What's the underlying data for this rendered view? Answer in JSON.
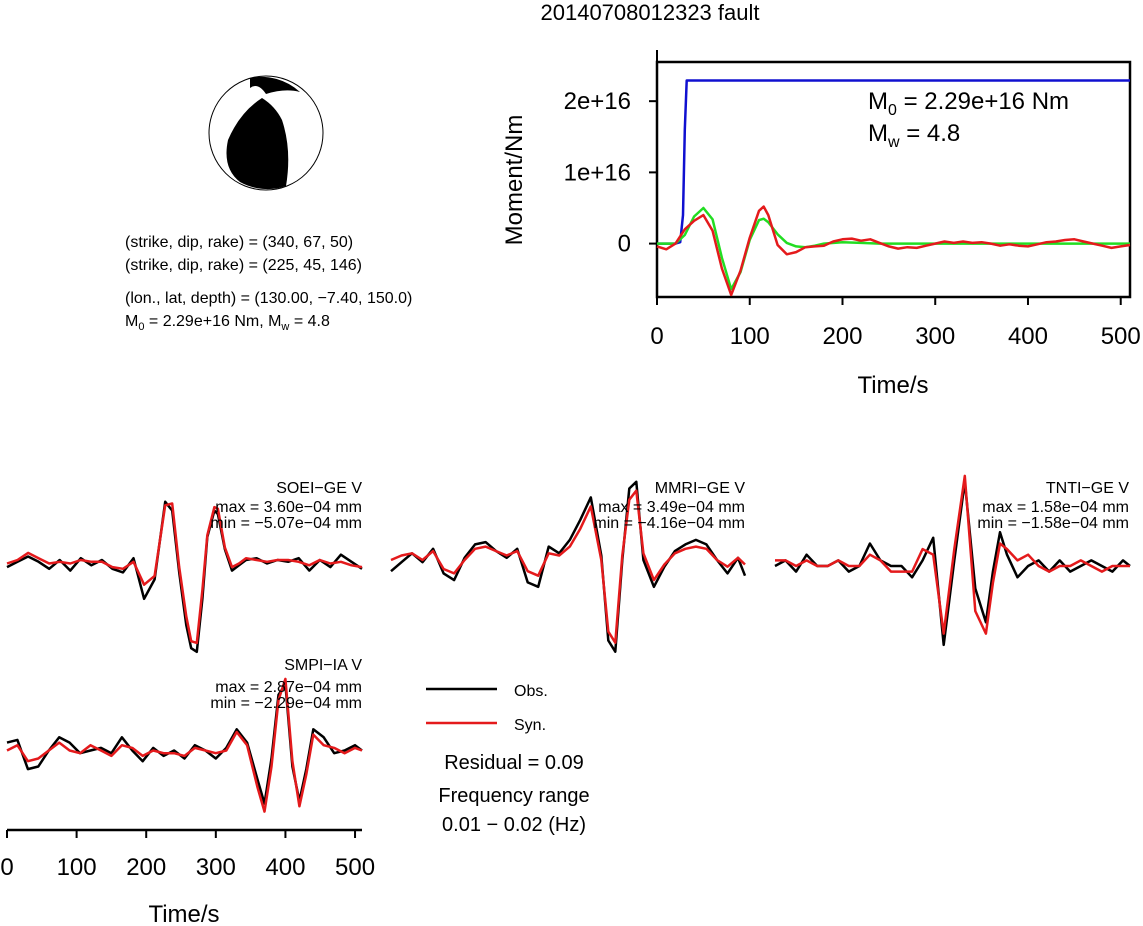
{
  "title": "20140708012323 fault",
  "mechanism": {
    "planes": [
      "(strike, dip, rake) = (340, 67, 50)",
      "(strike, dip, rake) = (225, 45, 146)"
    ],
    "location": "(lon., lat, depth) = (130.00, −7.40, 150.0)",
    "moment_line": {
      "m0_sym": "M",
      "m0_sub": "0",
      "m0_val": " = 2.29e+16 Nm, ",
      "mw_sym": "M",
      "mw_sub": "w",
      "mw_val": " = 4.8"
    }
  },
  "legend": {
    "obs_label": "Obs.",
    "syn_label": "Syn.",
    "residual": "Residual = 0.09",
    "freq_title": "Frequency range",
    "freq_value": "0.01 − 0.02 (Hz)"
  },
  "colors": {
    "observed": "#000000",
    "synthetic": "#e41a1c",
    "cumulative_moment": "#1010d0",
    "moment_rate": "#22dd22"
  },
  "chart_data": [
    {
      "type": "line",
      "title": "",
      "xlabel": "Time/s",
      "ylabel": "Moment/Nm",
      "xlim": [
        0,
        510
      ],
      "ylim": [
        -7500000000000000.0,
        2.55e+16
      ],
      "x_ticks": [
        0,
        100,
        200,
        300,
        400,
        500
      ],
      "x_tick_labels": [
        "0",
        "100",
        "200",
        "300",
        "400",
        "500"
      ],
      "y_ticks": [
        0,
        1e+16,
        2e+16
      ],
      "y_tick_labels": [
        "0",
        "1e+16",
        "2e+16"
      ],
      "annotation": {
        "m0_sym": "M",
        "m0_sub": "0",
        "m0_val": " = 2.29e+16 Nm",
        "mw_sym": "M",
        "mw_sub": "w",
        "mw_val": " = 4.8"
      },
      "series": [
        {
          "name": "",
          "color": "#1010d0",
          "x": [
            0,
            20,
            25,
            28,
            30,
            32,
            35,
            510
          ],
          "y": [
            0,
            0,
            200000000000000.0,
            4000000000000000.0,
            1.6e+16,
            2.29e+16,
            2.29e+16,
            2.29e+16
          ]
        },
        {
          "name": "",
          "color": "#22dd22",
          "x": [
            0,
            20,
            30,
            40,
            50,
            60,
            70,
            80,
            90,
            100,
            110,
            115,
            120,
            130,
            140,
            150,
            160,
            170,
            180,
            200,
            220,
            240,
            260,
            510
          ],
          "y": [
            0,
            0,
            1200000000000000.0,
            3800000000000000.0,
            5000000000000000.0,
            3400000000000000.0,
            -2000000000000000.0,
            -6400000000000000.0,
            -4000000000000000.0,
            500000000000000.0,
            3300000000000000.0,
            3500000000000000.0,
            3000000000000000.0,
            1300000000000000.0,
            100000000000000.0,
            -400000000000000.0,
            -500000000000000.0,
            -300000000000000.0,
            0,
            200000000000000.0,
            100000000000000.0,
            0,
            0,
            0
          ]
        },
        {
          "name": "",
          "color": "#e41a1c",
          "x": [
            0,
            10,
            20,
            30,
            40,
            50,
            60,
            70,
            80,
            90,
            100,
            110,
            115,
            120,
            130,
            140,
            150,
            160,
            170,
            180,
            190,
            200,
            210,
            220,
            230,
            240,
            250,
            260,
            270,
            280,
            290,
            300,
            310,
            320,
            330,
            340,
            350,
            360,
            370,
            380,
            390,
            400,
            410,
            420,
            430,
            440,
            450,
            460,
            470,
            480,
            490,
            500,
            510
          ],
          "y": [
            -400000000000000.0,
            -800000000000000.0,
            0,
            2000000000000000.0,
            3200000000000000.0,
            4000000000000000.0,
            1800000000000000.0,
            -3500000000000000.0,
            -7200000000000000.0,
            -3800000000000000.0,
            800000000000000.0,
            4600000000000000.0,
            5200000000000000.0,
            4000000000000000.0,
            -200000000000000.0,
            -1500000000000000.0,
            -1200000000000000.0,
            -500000000000000.0,
            -400000000000000.0,
            -300000000000000.0,
            300000000000000.0,
            600000000000000.0,
            700000000000000.0,
            400000000000000.0,
            600000000000000.0,
            100000000000000.0,
            -400000000000000.0,
            -700000000000000.0,
            -500000000000000.0,
            -600000000000000.0,
            -300000000000000.0,
            0,
            300000000000000.0,
            100000000000000.0,
            300000000000000.0,
            100000000000000.0,
            200000000000000.0,
            0,
            -300000000000000.0,
            -100000000000000.0,
            -300000000000000.0,
            -400000000000000.0,
            -100000000000000.0,
            200000000000000.0,
            300000000000000.0,
            500000000000000.0,
            600000000000000.0,
            300000000000000.0,
            0,
            -300000000000000.0,
            -600000000000000.0,
            -400000000000000.0,
            -200000000000000.0
          ]
        }
      ]
    },
    {
      "type": "line",
      "title": "SOEI−GE V",
      "annotations": [
        "max = 3.60e−04 mm",
        "min = −5.07e−04 mm"
      ],
      "ylim": [
        -5.07,
        3.6
      ],
      "x": [
        0,
        15,
        30,
        45,
        60,
        75,
        90,
        105,
        120,
        135,
        150,
        165,
        180,
        195,
        210,
        225,
        235,
        245,
        255,
        262,
        270,
        278,
        285,
        295,
        300,
        310,
        320,
        330,
        340,
        355,
        370,
        385,
        400,
        415,
        430,
        445,
        460,
        475,
        490,
        505
      ],
      "series": [
        {
          "name": "Obs.",
          "color": "#000000",
          "values": [
            -0.2,
            0.1,
            0.4,
            0.1,
            -0.3,
            0.2,
            -0.4,
            0.3,
            -0.1,
            0.2,
            -0.3,
            -0.5,
            0.3,
            -2.0,
            -0.9,
            3.5,
            3.0,
            -0.5,
            -3.5,
            -4.8,
            -5.0,
            -2.0,
            1.5,
            3.0,
            2.8,
            0.8,
            -0.4,
            -0.1,
            0.2,
            0.3,
            0.0,
            0.2,
            0.1,
            0.3,
            -0.4,
            0.2,
            -0.2,
            0.5,
            0.1,
            -0.3
          ]
        },
        {
          "name": "Syn.",
          "color": "#e41a1c",
          "values": [
            0.0,
            0.2,
            0.6,
            0.3,
            0.0,
            0.1,
            0.0,
            0.2,
            0.1,
            0.1,
            -0.2,
            -0.3,
            0.1,
            -1.2,
            -0.7,
            3.3,
            3.4,
            -0.2,
            -3.0,
            -4.4,
            -4.5,
            -1.5,
            1.6,
            3.2,
            3.1,
            0.9,
            -0.2,
            0.0,
            0.3,
            0.2,
            0.1,
            0.2,
            0.2,
            0.1,
            -0.1,
            0.2,
            0.0,
            0.1,
            -0.1,
            -0.2
          ]
        }
      ]
    },
    {
      "type": "line",
      "title": "MMRI−GE V",
      "annotations": [
        "max = 3.49e−04 mm",
        "min = −4.16e−04 mm"
      ],
      "ylim": [
        -4.16,
        3.49
      ],
      "x": [
        0,
        15,
        30,
        45,
        60,
        75,
        90,
        105,
        120,
        135,
        150,
        165,
        180,
        195,
        210,
        225,
        240,
        255,
        270,
        285,
        300,
        310,
        320,
        330,
        340,
        350,
        360,
        375,
        390,
        405,
        420,
        435,
        450,
        465,
        480,
        495,
        505
      ],
      "series": [
        {
          "name": "Obs.",
          "color": "#000000",
          "values": [
            -0.5,
            -0.1,
            0.3,
            -0.1,
            0.5,
            -0.6,
            -0.9,
            0.1,
            0.7,
            0.8,
            0.4,
            0.1,
            0.5,
            -1.0,
            -1.2,
            0.6,
            0.3,
            0.9,
            1.8,
            2.8,
            0.2,
            -3.6,
            -4.1,
            0.0,
            3.2,
            3.5,
            0.0,
            -1.2,
            -0.3,
            0.4,
            0.7,
            0.9,
            0.7,
            0.0,
            -0.6,
            0.1,
            -0.7
          ]
        },
        {
          "name": "Syn.",
          "color": "#e41a1c",
          "values": [
            0.0,
            0.2,
            0.3,
            0.0,
            0.4,
            -0.4,
            -0.6,
            0.0,
            0.5,
            0.6,
            0.4,
            0.2,
            0.4,
            -0.5,
            -0.7,
            0.3,
            0.2,
            0.6,
            1.4,
            2.4,
            0.0,
            -3.2,
            -3.7,
            0.2,
            2.7,
            3.1,
            0.3,
            -0.9,
            -0.2,
            0.3,
            0.5,
            0.6,
            0.5,
            0.0,
            -0.3,
            0.1,
            -0.2
          ]
        }
      ]
    },
    {
      "type": "line",
      "title": "TNTI−GE V",
      "annotations": [
        "max = 1.58e−04 mm",
        "min = −1.58e−04 mm"
      ],
      "ylim": [
        -1.58,
        1.58
      ],
      "x": [
        0,
        15,
        30,
        45,
        60,
        75,
        90,
        105,
        120,
        135,
        150,
        165,
        180,
        195,
        210,
        225,
        240,
        255,
        270,
        285,
        300,
        310,
        320,
        330,
        345,
        360,
        375,
        390,
        405,
        420,
        435,
        450,
        465,
        480,
        495,
        505
      ],
      "series": [
        {
          "name": "Obs.",
          "color": "#000000",
          "values": [
            0.0,
            0.1,
            -0.1,
            0.2,
            0.0,
            0.0,
            0.1,
            -0.1,
            0.0,
            0.4,
            0.1,
            0.0,
            0.0,
            -0.2,
            0.1,
            0.5,
            -1.4,
            0.1,
            1.5,
            -0.4,
            -1.0,
            -0.1,
            0.6,
            0.2,
            -0.2,
            0.0,
            0.1,
            -0.1,
            0.1,
            -0.1,
            0.0,
            0.1,
            0.0,
            -0.1,
            0.1,
            0.0
          ]
        },
        {
          "name": "Syn.",
          "color": "#e41a1c",
          "values": [
            0.1,
            0.1,
            0.0,
            0.1,
            0.0,
            0.0,
            0.1,
            0.0,
            0.0,
            0.2,
            0.1,
            -0.1,
            -0.1,
            -0.1,
            0.3,
            0.2,
            -1.2,
            0.3,
            1.6,
            -0.8,
            -1.2,
            -0.3,
            0.4,
            0.3,
            0.1,
            0.2,
            0.0,
            -0.1,
            0.0,
            0.0,
            0.1,
            0.0,
            -0.1,
            0.0,
            0.0,
            0.0
          ]
        }
      ]
    },
    {
      "type": "line",
      "title": "SMPI−IA V",
      "annotations": [
        "max = 2.87e−04 mm",
        "min = −2.29e−04 mm"
      ],
      "xlabel": "Time/s",
      "xlim": [
        0,
        510
      ],
      "x_ticks": [
        0,
        100,
        200,
        300,
        400,
        500
      ],
      "x_tick_labels": [
        "0",
        "100",
        "200",
        "300",
        "400",
        "500"
      ],
      "ylim": [
        -2.29,
        2.87
      ],
      "x": [
        0,
        15,
        30,
        45,
        60,
        75,
        90,
        105,
        120,
        135,
        150,
        165,
        180,
        195,
        210,
        225,
        240,
        255,
        270,
        285,
        300,
        315,
        330,
        345,
        360,
        370,
        380,
        390,
        400,
        410,
        420,
        430,
        440,
        455,
        470,
        485,
        500,
        510
      ],
      "series": [
        {
          "name": "Obs.",
          "color": "#000000",
          "values": [
            0.4,
            0.5,
            -0.6,
            -0.5,
            0.1,
            0.6,
            0.4,
            0.0,
            0.1,
            0.2,
            0.0,
            0.6,
            0.1,
            -0.3,
            0.2,
            -0.1,
            0.1,
            -0.2,
            0.3,
            0.1,
            -0.2,
            0.2,
            0.9,
            0.4,
            -1.0,
            -1.9,
            -0.2,
            2.2,
            2.6,
            -0.5,
            -1.8,
            -0.6,
            0.9,
            0.6,
            0.0,
            0.1,
            0.3,
            0.1
          ]
        },
        {
          "name": "Syn.",
          "color": "#e41a1c",
          "values": [
            0.1,
            0.3,
            -0.3,
            -0.2,
            0.1,
            0.4,
            0.1,
            0.0,
            0.3,
            0.1,
            -0.1,
            0.3,
            0.2,
            -0.1,
            0.1,
            0.0,
            0.0,
            -0.1,
            0.2,
            0.1,
            0.0,
            0.1,
            0.8,
            0.3,
            -1.3,
            -2.2,
            -0.5,
            2.0,
            2.8,
            -0.3,
            -2.0,
            -0.8,
            0.7,
            0.3,
            0.2,
            0.0,
            0.2,
            0.1
          ]
        }
      ]
    }
  ]
}
